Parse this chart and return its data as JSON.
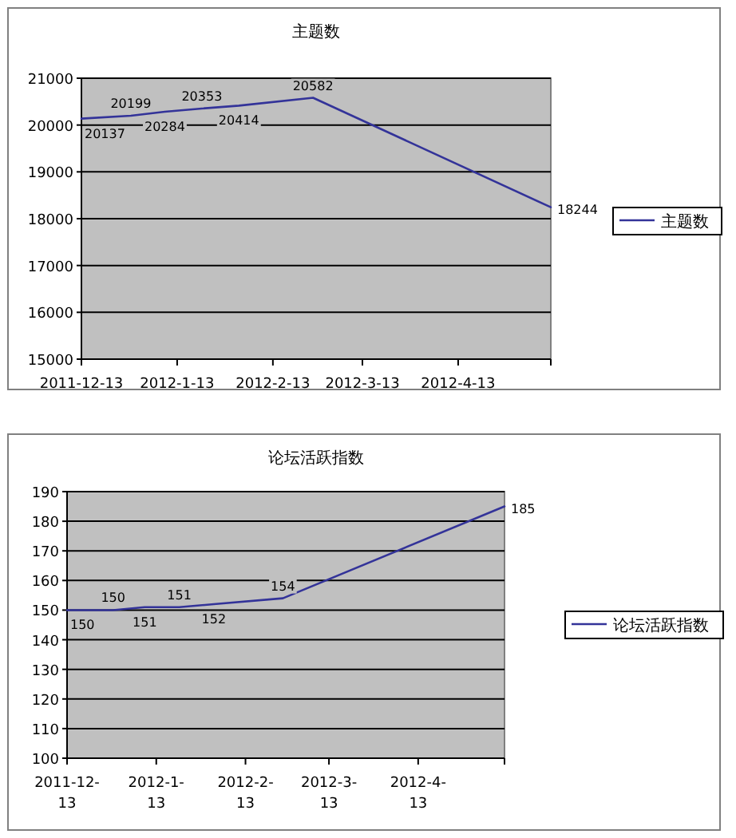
{
  "chart_data": [
    {
      "type": "line",
      "title": "主题数",
      "x": [
        "2011-12-13",
        "2011-12-29",
        "2012-01-09",
        "2012-01-21",
        "2012-02-02",
        "2012-02-26",
        "2012-05-13"
      ],
      "series": [
        {
          "name": "主题数",
          "color": "#333399",
          "values": [
            20137,
            20199,
            20284,
            20353,
            20414,
            20582,
            18244
          ]
        }
      ],
      "xlim": [
        "2011-12-13",
        "2012-05-13"
      ],
      "xticks": [
        {
          "value": "2011-12-13",
          "label": "2011-12-13"
        },
        {
          "value": "2012-01-13",
          "label": "2012-1-13"
        },
        {
          "value": "2012-02-13",
          "label": "2012-2-13"
        },
        {
          "value": "2012-03-13",
          "label": "2012-3-13"
        },
        {
          "value": "2012-04-13",
          "label": "2012-4-13"
        },
        {
          "value": "2012-05-13",
          "label": null
        }
      ],
      "ylim": [
        15000,
        21000
      ],
      "yticks": [
        15000,
        16000,
        17000,
        18000,
        19000,
        20000,
        21000
      ],
      "grid": "y",
      "legend": "right",
      "data_labels": true,
      "marker": "none",
      "line_style": "solid"
    },
    {
      "type": "line",
      "title": "论坛活跃指数",
      "x": [
        "2011-12-13",
        "2011-12-29",
        "2012-01-09",
        "2012-01-21",
        "2012-02-02",
        "2012-02-26",
        "2012-05-13"
      ],
      "series": [
        {
          "name": "论坛活跃指数",
          "color": "#333399",
          "values": [
            150,
            150,
            151,
            151,
            152,
            154,
            185
          ]
        }
      ],
      "xlim": [
        "2011-12-13",
        "2012-05-13"
      ],
      "xticks": [
        {
          "value": "2011-12-13",
          "label": "2011-12-13"
        },
        {
          "value": "2012-01-13",
          "label": "2012-1-13"
        },
        {
          "value": "2012-02-13",
          "label": "2012-2-13"
        },
        {
          "value": "2012-03-13",
          "label": "2012-3-13"
        },
        {
          "value": "2012-04-13",
          "label": "2012-4-13"
        },
        {
          "value": "2012-05-13",
          "label": null
        }
      ],
      "ylim": [
        100,
        190
      ],
      "yticks": [
        100,
        110,
        120,
        130,
        140,
        150,
        160,
        170,
        180,
        190
      ],
      "grid": "y",
      "legend": "right",
      "data_labels": true,
      "marker": "none",
      "line_style": "solid"
    }
  ]
}
